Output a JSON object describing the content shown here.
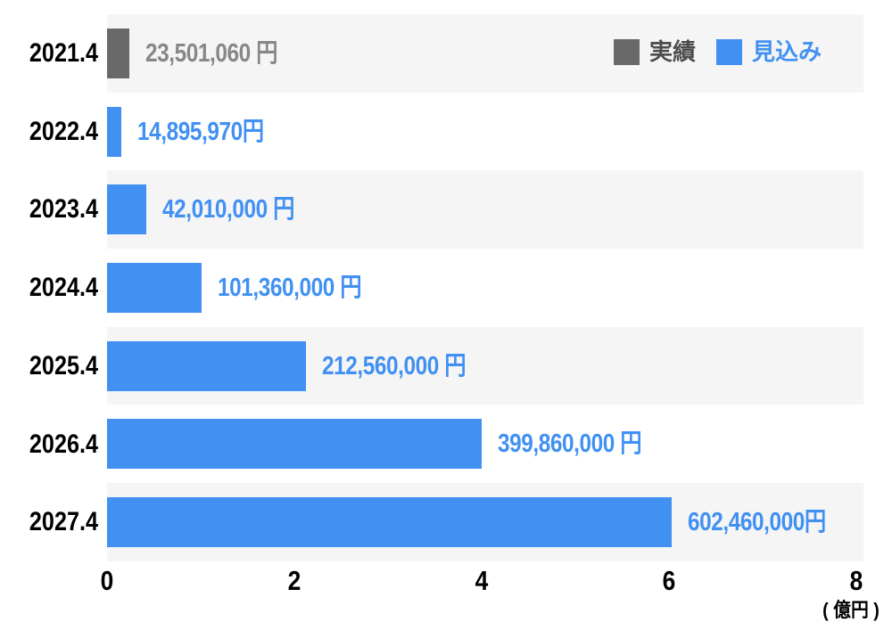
{
  "chart_data": {
    "type": "bar",
    "orientation": "horizontal",
    "title": "",
    "categories": [
      "2021.4",
      "2022.4",
      "2023.4",
      "2024.4",
      "2025.4",
      "2026.4",
      "2027.4"
    ],
    "series": [
      {
        "name": "実績",
        "rows": [
          "2021.4"
        ]
      },
      {
        "name": "見込み",
        "rows": [
          "2022.4",
          "2023.4",
          "2024.4",
          "2025.4",
          "2026.4",
          "2027.4"
        ]
      }
    ],
    "values_yen": [
      23501060,
      14895970,
      42010000,
      101360000,
      212560000,
      399860000,
      602460000
    ],
    "value_labels": [
      "23,501,060 円",
      "14,895,970円",
      "42,010,000 円",
      "101,360,000 円",
      "212,560,000 円",
      "399,860,000 円",
      "602,460,000円"
    ],
    "series_membership": [
      "実績",
      "見込み",
      "見込み",
      "見込み",
      "見込み",
      "見込み",
      "見込み"
    ],
    "x_axis": {
      "ticks": [
        "0",
        "2",
        "4",
        "6",
        "8"
      ],
      "tick_values_oku": [
        0,
        2,
        4,
        6,
        8
      ],
      "unit_label": "( 億円 )",
      "range_oku": [
        0,
        8
      ],
      "grid": false
    },
    "legend": {
      "position": "top-right",
      "items": [
        {
          "label": "実績",
          "color": "#696969",
          "text_color": "#4d4d4d"
        },
        {
          "label": "見込み",
          "color": "#4190f2",
          "text_color": "#4190f2"
        }
      ]
    },
    "colors": {
      "actual_bar": "#696969",
      "forecast_bar": "#4190f2",
      "actual_value_text": "#878787",
      "forecast_value_text": "#4190f2",
      "row_stripe": "#f5f5f6",
      "axis_text": "#000000",
      "background": "#ffffff"
    }
  }
}
